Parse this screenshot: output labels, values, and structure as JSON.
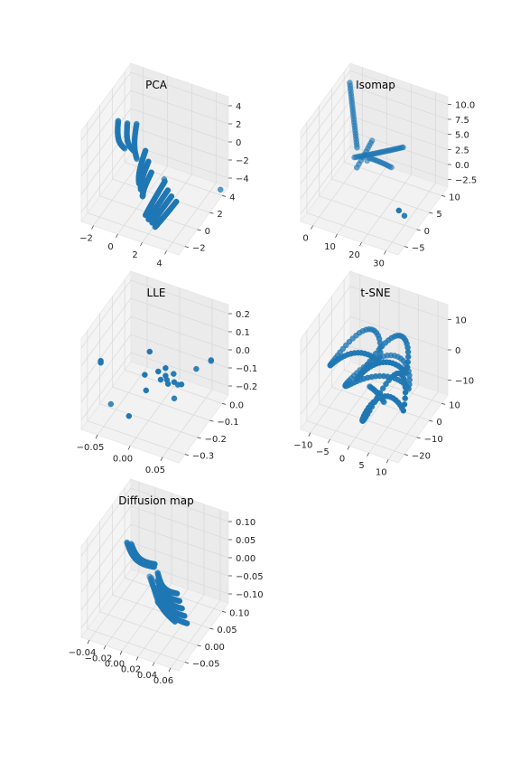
{
  "chart_data": [
    {
      "type": "scatter",
      "title": "PCA",
      "ticks": {
        "x": [
          "−2",
          "0",
          "2",
          "4"
        ],
        "y": [
          "−2",
          "0",
          "2",
          "4"
        ],
        "z": [
          "−4",
          "−2",
          "0",
          "2",
          "4"
        ]
      },
      "xlim": [
        -3,
        5
      ],
      "ylim": [
        -3,
        5
      ],
      "zlim": [
        -5,
        5
      ],
      "series": [
        {
          "kind": "arc",
          "from": [
            -3.0,
            -2.0,
            -3.5
          ],
          "to": [
            -1.5,
            2.0,
            4.0
          ],
          "n": 30
        },
        {
          "kind": "arc",
          "from": [
            -2.5,
            -2.5,
            -4.0
          ],
          "to": [
            -1.0,
            1.5,
            3.5
          ],
          "n": 28
        },
        {
          "kind": "arc",
          "from": [
            -2.0,
            -2.0,
            -4.2
          ],
          "to": [
            -0.5,
            1.0,
            3.2
          ],
          "n": 28
        },
        {
          "kind": "arc",
          "from": [
            -0.8,
            0.0,
            -4.5
          ],
          "to": [
            1.5,
            3.5,
            3.5
          ],
          "n": 34
        },
        {
          "kind": "arc",
          "from": [
            -0.4,
            0.5,
            -4.5
          ],
          "to": [
            2.0,
            4.0,
            3.0
          ],
          "n": 34
        },
        {
          "kind": "arc",
          "from": [
            0.0,
            1.0,
            -4.6
          ],
          "to": [
            2.5,
            4.5,
            2.5
          ],
          "n": 34
        },
        {
          "kind": "arc",
          "from": [
            1.0,
            2.5,
            -4.8
          ],
          "to": [
            3.6,
            4.5,
            2.0
          ],
          "n": 30
        },
        {
          "kind": "arc",
          "from": [
            1.4,
            2.8,
            -4.8
          ],
          "to": [
            4.0,
            4.8,
            1.5
          ],
          "n": 30
        },
        {
          "kind": "arc",
          "from": [
            1.8,
            3.0,
            -4.8
          ],
          "to": [
            4.4,
            5.0,
            1.2
          ],
          "n": 30
        },
        {
          "kind": "arc",
          "from": [
            2.2,
            3.3,
            -4.8
          ],
          "to": [
            4.8,
            5.2,
            0.8
          ],
          "n": 30
        },
        {
          "kind": "pts",
          "pts": [
            [
              0.5,
              -1.5,
              -4.8
            ],
            [
              4.6,
              -2.5,
              -5.0
            ]
          ]
        }
      ]
    },
    {
      "type": "scatter",
      "title": "Isomap",
      "ticks": {
        "x": [
          "0",
          "10",
          "20",
          "30"
        ],
        "y": [
          "−5",
          "0",
          "5",
          "10"
        ],
        "z": [
          "−2.5",
          "0.0",
          "2.5",
          "5.0",
          "7.5",
          "10.0"
        ]
      },
      "xlim": [
        -5,
        35
      ],
      "ylim": [
        -7,
        12
      ],
      "zlim": [
        -3.5,
        11
      ],
      "series": [
        {
          "kind": "arc",
          "from": [
            -2,
            -4,
            10
          ],
          "to": [
            1,
            -4,
            0
          ],
          "n": 24
        },
        {
          "kind": "arc",
          "from": [
            1,
            -3,
            -1
          ],
          "to": [
            22,
            -2,
            4
          ],
          "n": 26
        },
        {
          "kind": "arc",
          "from": [
            2,
            -3,
            -2.5
          ],
          "to": [
            5,
            -6,
            0.5
          ],
          "n": 10
        },
        {
          "kind": "arc",
          "from": [
            6,
            -4,
            -1
          ],
          "to": [
            14,
            -5,
            -2
          ],
          "n": 12
        },
        {
          "kind": "pts",
          "pts": [
            [
              3,
              -6,
              -3
            ],
            [
              29,
              4,
              -2.6
            ],
            [
              31,
              8,
              0.8
            ]
          ]
        }
      ]
    },
    {
      "type": "scatter",
      "title": "LLE",
      "ticks": {
        "x": [
          "−0.05",
          "0.00",
          "0.05"
        ],
        "y": [
          "−0.3",
          "−0.2",
          "−0.1",
          "0.0"
        ],
        "z": [
          "−0.2",
          "−0.1",
          "0.0",
          "0.1",
          "0.2"
        ]
      },
      "xlim": [
        -0.09,
        0.07
      ],
      "ylim": [
        -0.36,
        0.04
      ],
      "zlim": [
        -0.25,
        0.22
      ],
      "series": [
        {
          "kind": "pts",
          "pts": [
            [
              -0.06,
              0.03,
              0.12
            ],
            [
              -0.06,
              0.03,
              0.13
            ],
            [
              0.01,
              -0.02,
              0.21
            ],
            [
              0.0,
              -0.03,
              0.07
            ],
            [
              0.02,
              -0.04,
              0.1
            ],
            [
              0.03,
              -0.05,
              0.08
            ],
            [
              0.03,
              -0.06,
              0.05
            ],
            [
              0.02,
              -0.06,
              0.04
            ],
            [
              0.04,
              -0.07,
              0.04
            ],
            [
              0.03,
              -0.07,
              0.02
            ],
            [
              0.05,
              -0.08,
              0.03
            ],
            [
              0.04,
              -0.1,
              0.0
            ],
            [
              0.035,
              -0.09,
              0.06
            ],
            [
              0.03,
              -0.05,
              0.12
            ],
            [
              0.06,
              -0.15,
              0.06
            ],
            [
              0.08,
              -0.22,
              0.05
            ],
            [
              0.08,
              -0.22,
              0.055
            ],
            [
              0.0,
              -0.04,
              -0.02
            ],
            [
              0.03,
              -0.12,
              -0.1
            ],
            [
              -0.02,
              0.0,
              -0.14
            ],
            [
              -0.07,
              -0.1,
              -0.22
            ]
          ]
        }
      ]
    },
    {
      "type": "scatter",
      "title": "t-SNE",
      "ticks": {
        "x": [
          "−10",
          "−5",
          "0",
          "5",
          "10"
        ],
        "y": [
          "−20",
          "−10",
          "0",
          "10"
        ],
        "z": [
          "−10",
          "0",
          "10"
        ]
      },
      "xlim": [
        -13,
        12
      ],
      "ylim": [
        -23,
        15
      ],
      "zlim": [
        -16,
        17
      ],
      "series": [
        {
          "kind": "loop",
          "c": [
            -4,
            0,
            6
          ],
          "r": [
            6,
            7,
            6
          ],
          "n": 46
        },
        {
          "kind": "loop",
          "c": [
            4,
            3,
            8
          ],
          "r": [
            6,
            8,
            7
          ],
          "n": 50
        },
        {
          "kind": "loop",
          "c": [
            0,
            -5,
            -4
          ],
          "r": [
            8,
            6,
            6
          ],
          "n": 50
        },
        {
          "kind": "loop",
          "c": [
            6,
            8,
            -2
          ],
          "r": [
            5,
            7,
            8
          ],
          "n": 46
        },
        {
          "kind": "arc",
          "from": [
            -2,
            -5,
            -8
          ],
          "to": [
            0,
            -10,
            -16
          ],
          "n": 18
        }
      ]
    },
    {
      "type": "scatter",
      "title": "Diffusion map",
      "ticks": {
        "x": [
          "−0.04",
          "−0.02",
          "0.00",
          "0.02",
          "0.04",
          "0.06"
        ],
        "y": [
          "−0.05",
          "0.00",
          "0.05",
          "0.10"
        ],
        "z": [
          "−0.10",
          "−0.05",
          "0.00",
          "0.05",
          "0.10"
        ]
      },
      "xlim": [
        -0.05,
        0.065
      ],
      "ylim": [
        -0.08,
        0.12
      ],
      "zlim": [
        -0.13,
        0.12
      ],
      "series": [
        {
          "kind": "arc",
          "from": [
            -0.04,
            -0.03,
            0.0
          ],
          "to": [
            0.03,
            0.1,
            0.11
          ],
          "n": 40
        },
        {
          "kind": "arc",
          "from": [
            -0.035,
            -0.03,
            0.0
          ],
          "to": [
            0.025,
            0.08,
            0.095
          ],
          "n": 36
        },
        {
          "kind": "arc",
          "from": [
            0.005,
            0.0,
            -0.02
          ],
          "to": [
            0.06,
            0.11,
            0.07
          ],
          "n": 30
        },
        {
          "kind": "arc",
          "from": [
            0.005,
            0.0,
            -0.04
          ],
          "to": [
            0.06,
            0.1,
            0.04
          ],
          "n": 30
        },
        {
          "kind": "arc",
          "from": [
            0.005,
            0.0,
            -0.06
          ],
          "to": [
            0.06,
            0.09,
            0.01
          ],
          "n": 30
        },
        {
          "kind": "arc",
          "from": [
            0.005,
            0.0,
            -0.08
          ],
          "to": [
            0.06,
            0.08,
            -0.02
          ],
          "n": 30
        },
        {
          "kind": "arc",
          "from": [
            0.005,
            0.0,
            -0.1
          ],
          "to": [
            0.06,
            0.07,
            -0.05
          ],
          "n": 30
        },
        {
          "kind": "arc",
          "from": [
            -0.02,
            -0.06,
            -0.11
          ],
          "to": [
            0.04,
            0.05,
            -0.08
          ],
          "n": 28
        },
        {
          "kind": "arc",
          "from": [
            -0.025,
            -0.07,
            -0.12
          ],
          "to": [
            0.02,
            0.0,
            -0.11
          ],
          "n": 20
        }
      ]
    }
  ],
  "colors": {
    "points": "#1f77b4"
  }
}
